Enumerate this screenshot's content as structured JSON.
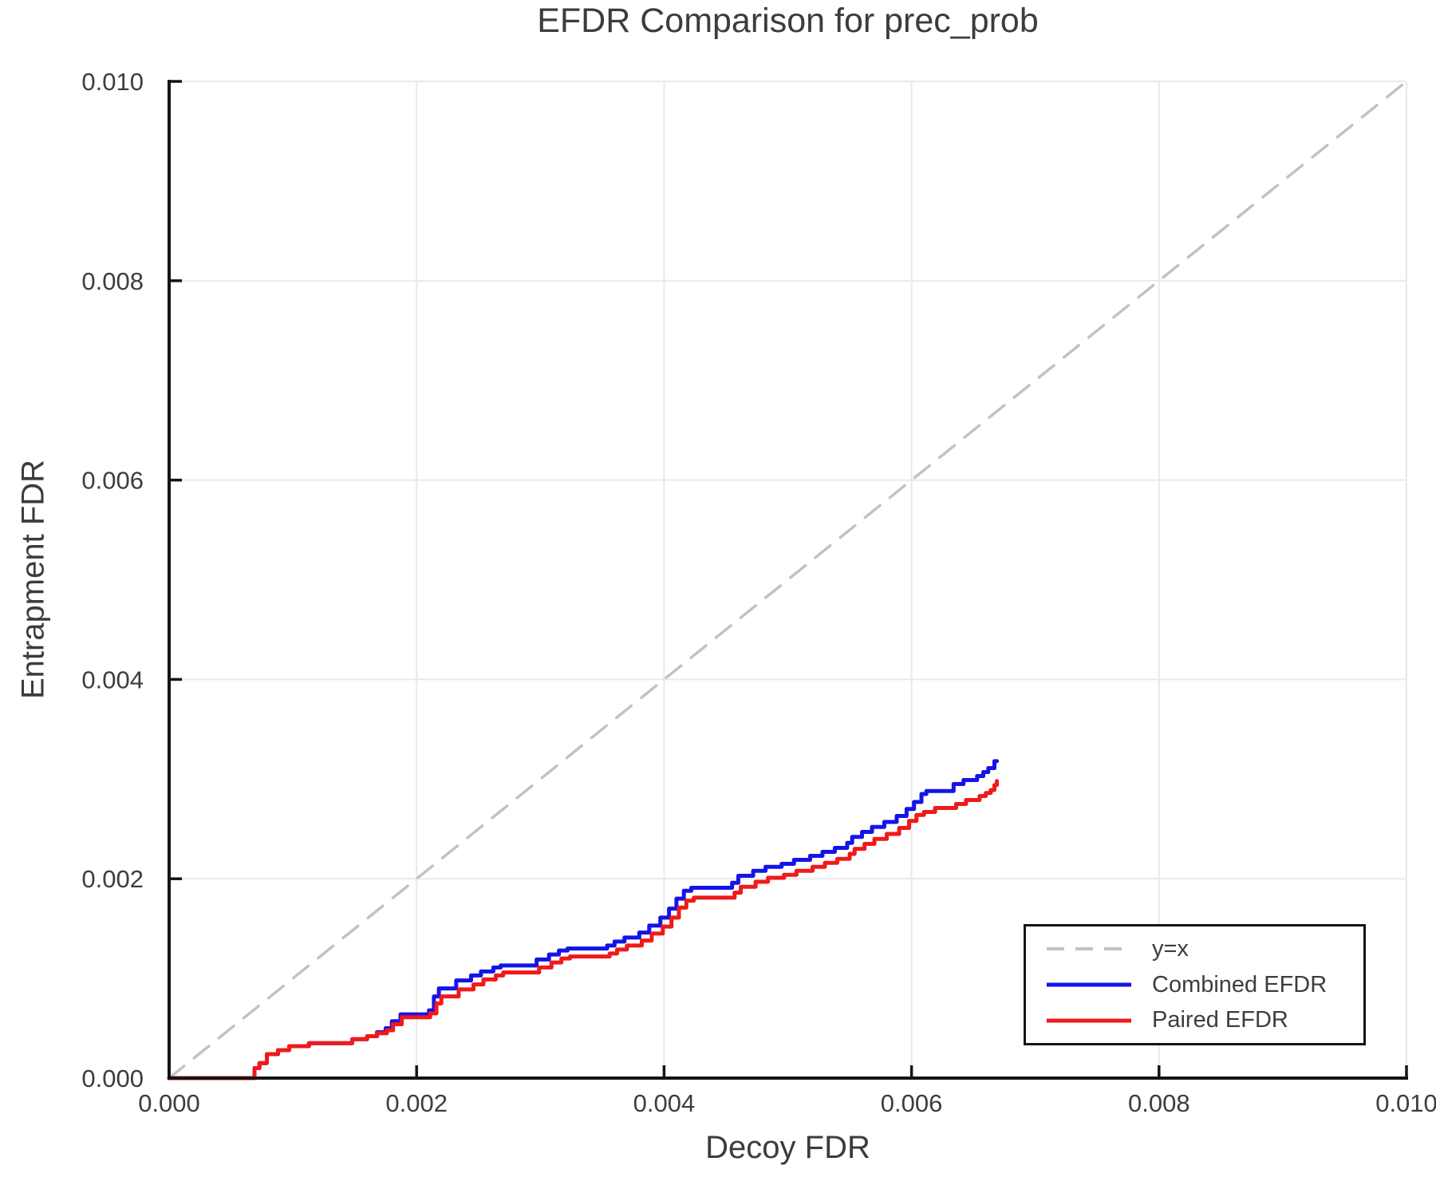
{
  "title": "EFDR Comparison for prec_prob",
  "axes": {
    "xlabel": "Decoy FDR",
    "ylabel": "Entrapment FDR",
    "x_tick_labels": [
      "0.000",
      "0.002",
      "0.004",
      "0.006",
      "0.008",
      "0.010"
    ],
    "y_tick_labels": [
      "0.000",
      "0.002",
      "0.004",
      "0.006",
      "0.008",
      "0.010"
    ],
    "xlim": [
      0.0,
      0.01
    ],
    "ylim": [
      0.0,
      0.01
    ],
    "grid": true
  },
  "colors": {
    "text": "#3d3d3d",
    "spine": "#141414",
    "grid": "#e9e9e9",
    "identity_line": "#c2c2c2",
    "combined": "#1414e8",
    "paired": "#ef1a1a",
    "background": "#ffffff"
  },
  "legend": {
    "position": "lower right",
    "items": [
      {
        "label": "y=x",
        "color": "#c2c2c2",
        "dashed": true
      },
      {
        "label": "Combined EFDR",
        "color": "#1414e8",
        "dashed": false
      },
      {
        "label": "Paired EFDR",
        "color": "#ef1a1a",
        "dashed": false
      }
    ]
  },
  "chart_data": {
    "type": "line",
    "title": "EFDR Comparison for prec_prob",
    "xlabel": "Decoy FDR",
    "ylabel": "Entrapment FDR",
    "xlim": [
      0.0,
      0.01
    ],
    "ylim": [
      0.0,
      0.01
    ],
    "grid": true,
    "legend_position": "lower right",
    "series": [
      {
        "name": "y=x",
        "style": "dashed",
        "step": false,
        "color": "#c2c2c2",
        "points": [
          [
            0.0,
            0.0
          ],
          [
            0.01,
            0.01
          ]
        ]
      },
      {
        "name": "Combined EFDR",
        "style": "solid",
        "step": true,
        "color": "#1414e8",
        "points": [
          [
            0.0,
            0.0
          ],
          [
            0.00069,
            0.0001
          ],
          [
            0.00073,
            0.00015
          ],
          [
            0.00079,
            0.00024
          ],
          [
            0.00088,
            0.00028
          ],
          [
            0.00097,
            0.00032
          ],
          [
            0.00113,
            0.00035
          ],
          [
            0.00148,
            0.00039
          ],
          [
            0.0016,
            0.00042
          ],
          [
            0.00168,
            0.00046
          ],
          [
            0.00175,
            0.0005
          ],
          [
            0.0018,
            0.00057
          ],
          [
            0.00187,
            0.00064
          ],
          [
            0.0021,
            0.00068
          ],
          [
            0.00214,
            0.00082
          ],
          [
            0.00218,
            0.0009
          ],
          [
            0.00232,
            0.00098
          ],
          [
            0.00244,
            0.00103
          ],
          [
            0.00252,
            0.00107
          ],
          [
            0.00262,
            0.00111
          ],
          [
            0.00268,
            0.00113
          ],
          [
            0.00297,
            0.00119
          ],
          [
            0.00307,
            0.00124
          ],
          [
            0.00315,
            0.00128
          ],
          [
            0.00322,
            0.0013
          ],
          [
            0.00354,
            0.00133
          ],
          [
            0.0036,
            0.00137
          ],
          [
            0.00368,
            0.00141
          ],
          [
            0.0038,
            0.00146
          ],
          [
            0.00388,
            0.00153
          ],
          [
            0.00397,
            0.00161
          ],
          [
            0.00404,
            0.0017
          ],
          [
            0.0041,
            0.0018
          ],
          [
            0.00416,
            0.00188
          ],
          [
            0.00422,
            0.00191
          ],
          [
            0.00455,
            0.00196
          ],
          [
            0.0046,
            0.00203
          ],
          [
            0.00472,
            0.00208
          ],
          [
            0.00482,
            0.00212
          ],
          [
            0.00495,
            0.00215
          ],
          [
            0.00505,
            0.00219
          ],
          [
            0.00518,
            0.00223
          ],
          [
            0.00528,
            0.00227
          ],
          [
            0.00538,
            0.00231
          ],
          [
            0.00548,
            0.00236
          ],
          [
            0.00552,
            0.00242
          ],
          [
            0.0056,
            0.00247
          ],
          [
            0.00568,
            0.00252
          ],
          [
            0.00578,
            0.00257
          ],
          [
            0.00588,
            0.00263
          ],
          [
            0.00596,
            0.0027
          ],
          [
            0.00602,
            0.00277
          ],
          [
            0.00608,
            0.00285
          ],
          [
            0.00612,
            0.00288
          ],
          [
            0.00634,
            0.00295
          ],
          [
            0.00642,
            0.00299
          ],
          [
            0.00653,
            0.00303
          ],
          [
            0.00658,
            0.00307
          ],
          [
            0.00662,
            0.00311
          ],
          [
            0.00667,
            0.00318
          ],
          [
            0.00669,
            0.00318
          ]
        ]
      },
      {
        "name": "Paired EFDR",
        "style": "solid",
        "step": true,
        "color": "#ef1a1a",
        "points": [
          [
            0.0,
            0.0
          ],
          [
            0.00069,
            0.0001
          ],
          [
            0.00073,
            0.00015
          ],
          [
            0.00079,
            0.00024
          ],
          [
            0.00088,
            0.00028
          ],
          [
            0.00097,
            0.00032
          ],
          [
            0.00113,
            0.00035
          ],
          [
            0.00148,
            0.00039
          ],
          [
            0.0016,
            0.00042
          ],
          [
            0.00168,
            0.00045
          ],
          [
            0.00176,
            0.00048
          ],
          [
            0.00181,
            0.00054
          ],
          [
            0.00188,
            0.00061
          ],
          [
            0.00211,
            0.00065
          ],
          [
            0.00216,
            0.00075
          ],
          [
            0.0022,
            0.00082
          ],
          [
            0.00234,
            0.00089
          ],
          [
            0.00246,
            0.00094
          ],
          [
            0.00254,
            0.00099
          ],
          [
            0.00264,
            0.00103
          ],
          [
            0.0027,
            0.00106
          ],
          [
            0.00299,
            0.00111
          ],
          [
            0.00309,
            0.00116
          ],
          [
            0.00317,
            0.0012
          ],
          [
            0.00324,
            0.00122
          ],
          [
            0.00356,
            0.00125
          ],
          [
            0.00362,
            0.00129
          ],
          [
            0.0037,
            0.00133
          ],
          [
            0.00382,
            0.00138
          ],
          [
            0.0039,
            0.00145
          ],
          [
            0.00399,
            0.00152
          ],
          [
            0.00406,
            0.00161
          ],
          [
            0.00412,
            0.00171
          ],
          [
            0.00418,
            0.00178
          ],
          [
            0.00424,
            0.00181
          ],
          [
            0.00457,
            0.00186
          ],
          [
            0.00462,
            0.00192
          ],
          [
            0.00474,
            0.00197
          ],
          [
            0.00484,
            0.00201
          ],
          [
            0.00497,
            0.00204
          ],
          [
            0.00507,
            0.00208
          ],
          [
            0.0052,
            0.00212
          ],
          [
            0.0053,
            0.00216
          ],
          [
            0.0054,
            0.0022
          ],
          [
            0.0055,
            0.00225
          ],
          [
            0.00554,
            0.0023
          ],
          [
            0.00562,
            0.00235
          ],
          [
            0.0057,
            0.0024
          ],
          [
            0.0058,
            0.00245
          ],
          [
            0.0059,
            0.00251
          ],
          [
            0.00598,
            0.00258
          ],
          [
            0.00604,
            0.00264
          ],
          [
            0.0061,
            0.00267
          ],
          [
            0.00619,
            0.00271
          ],
          [
            0.00636,
            0.00275
          ],
          [
            0.00644,
            0.00279
          ],
          [
            0.00655,
            0.00283
          ],
          [
            0.0066,
            0.00286
          ],
          [
            0.00664,
            0.00289
          ],
          [
            0.00667,
            0.00294
          ],
          [
            0.00669,
            0.00298
          ]
        ]
      }
    ]
  }
}
